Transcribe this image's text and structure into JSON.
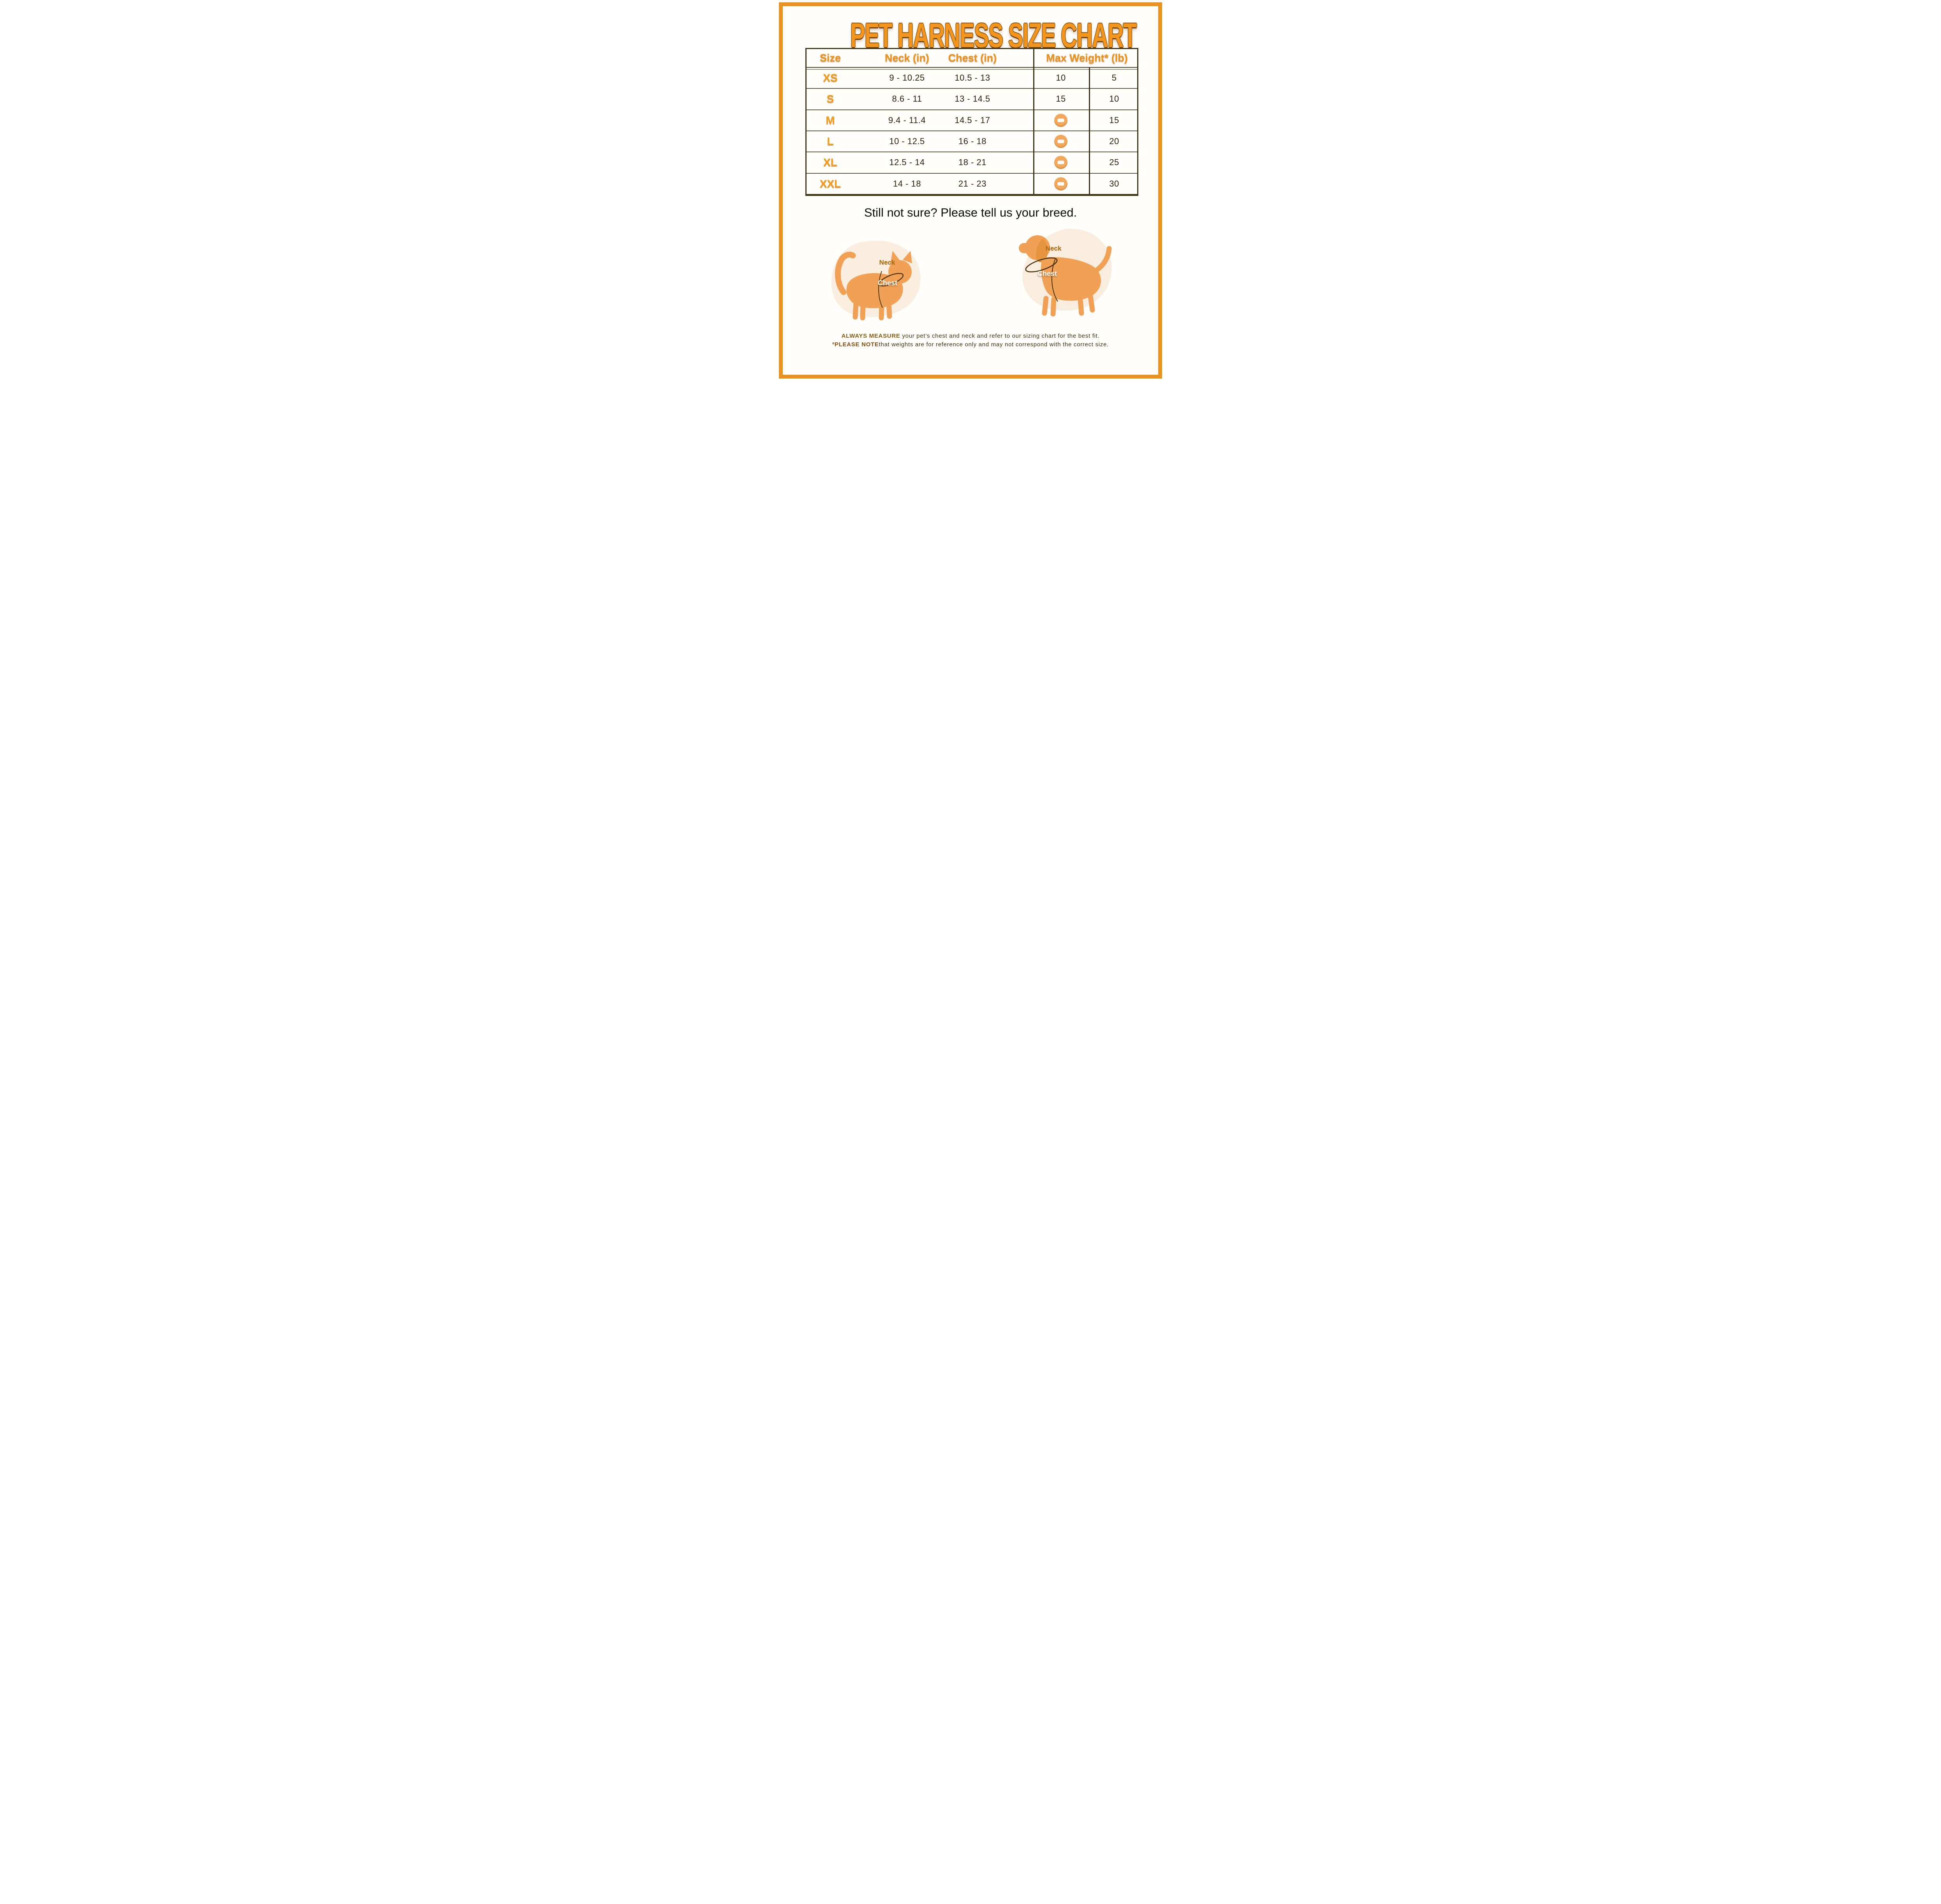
{
  "title": "PET HARNESS SIZE CHART",
  "table": {
    "headers": {
      "size": "Size",
      "neck": "Neck (in)",
      "chest": "Chest (in)",
      "max_weight": "Max Weight* (lb)"
    },
    "rows": [
      {
        "size": "XS",
        "neck": "9 - 10.25",
        "chest": "10.5 - 13",
        "max_weight_cat": "10",
        "max_weight_dog": "5"
      },
      {
        "size": "S",
        "neck": "8.6 - 11",
        "chest": "13 - 14.5",
        "max_weight_cat": "15",
        "max_weight_dog": "10"
      },
      {
        "size": "M",
        "neck": "9.4 - 11.4",
        "chest": "14.5 - 17",
        "max_weight_cat": null,
        "max_weight_dog": "15"
      },
      {
        "size": "L",
        "neck": "10 - 12.5",
        "chest": "16 - 18",
        "max_weight_cat": null,
        "max_weight_dog": "20"
      },
      {
        "size": "XL",
        "neck": "12.5 - 14",
        "chest": "18 - 21",
        "max_weight_cat": null,
        "max_weight_dog": "25"
      },
      {
        "size": "XXL",
        "neck": "14 - 18",
        "chest": "21 - 23",
        "max_weight_cat": null,
        "max_weight_dog": "30"
      }
    ],
    "no_value_icon": "minus-in-circle"
  },
  "prompt": "Still not sure? Please tell us your breed.",
  "diagram": {
    "cat": {
      "neck_label": "Neck",
      "chest_label": "Chest"
    },
    "dog": {
      "neck_label": "Neck",
      "chest_label": "Chest"
    }
  },
  "notes": {
    "line1_bold": "ALWAYS MEASURE",
    "line1_rest": " your pet’s chest and neck and refer to our sizing chart for the best fit.",
    "line2_marker": "º",
    "line2_bold": "PLEASE NOTE",
    "line2_rest": "that weights are for reference only and may not correspond with the correct size."
  },
  "colors": {
    "frame_orange": "#E8921F",
    "title_orange": "#F2951F",
    "header_orange": "#EA921C",
    "silhouette_orange": "#F0A155",
    "blob_cream": "#FAEEE1",
    "minus_icon_orange": "#F2A85C",
    "table_line_dark": "#43391A",
    "number_text": "#2B2310"
  }
}
